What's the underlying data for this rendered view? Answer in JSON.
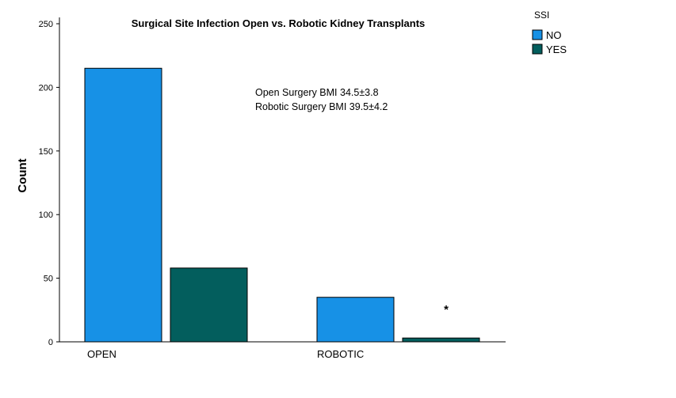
{
  "chart_data": {
    "type": "bar",
    "title": "Surgical Site Infection Open vs. Robotic Kidney Transplants",
    "xlabel": "",
    "ylabel": "Count",
    "ylim": [
      0,
      250
    ],
    "yticks": [
      "0",
      "50",
      "100",
      "150",
      "200",
      "250"
    ],
    "categories": [
      "OPEN",
      "ROBOTIC"
    ],
    "legend_title": "SSI",
    "legend_position": "top-right",
    "grid": false,
    "series": [
      {
        "name": "NO",
        "color": "#1791E6",
        "values": [
          215,
          35
        ]
      },
      {
        "name": "YES",
        "color": "#035E5D",
        "values": [
          58,
          3
        ]
      }
    ],
    "annotations": [
      "Open Surgery BMI 34.5±3.8",
      "Robotic Surgery BMI 39.5±4.2"
    ],
    "significance_marker": "*"
  }
}
